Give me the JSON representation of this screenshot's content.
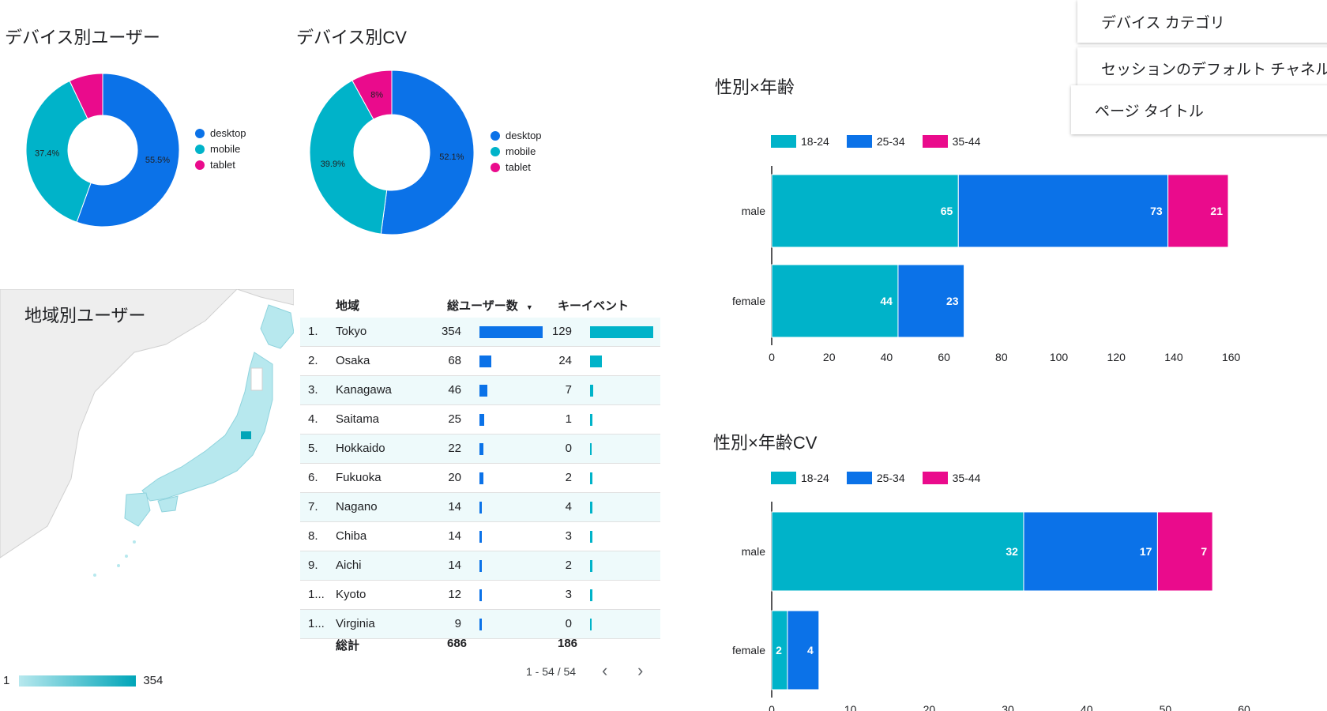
{
  "controls": {
    "device_category": "デバイス カテゴリ",
    "session_channel": "セッションのデフォルト チャネル ...",
    "page_title": "ページ タイトル"
  },
  "charts": {
    "device_users": {
      "title": "デバイス別ユーザー",
      "slices": [
        {
          "label": "desktop",
          "pct_label": "55.5%",
          "value": 55.5,
          "color": "#0b72e8"
        },
        {
          "label": "mobile",
          "pct_label": "37.4%",
          "value": 37.4,
          "color": "#00b3c9"
        },
        {
          "label": "tablet",
          "pct_label": "",
          "value": 7.1,
          "color": "#ea0b8c"
        }
      ]
    },
    "device_cv": {
      "title": "デバイス別CV",
      "slices": [
        {
          "label": "desktop",
          "pct_label": "52.1%",
          "value": 52.1,
          "color": "#0b72e8"
        },
        {
          "label": "mobile",
          "pct_label": "39.9%",
          "value": 39.9,
          "color": "#00b3c9"
        },
        {
          "label": "tablet",
          "pct_label": "8%",
          "value": 8.0,
          "color": "#ea0b8c"
        }
      ]
    },
    "gender_age": {
      "title": "性別×年齢",
      "legend": [
        "18-24",
        "25-34",
        "35-44"
      ],
      "colors": [
        "#00b3c9",
        "#0b72e8",
        "#ea0b8c"
      ],
      "categories": [
        "male",
        "female"
      ],
      "series": [
        {
          "name": "18-24",
          "values": [
            65,
            44
          ]
        },
        {
          "name": "25-34",
          "values": [
            73,
            23
          ]
        },
        {
          "name": "35-44",
          "values": [
            21,
            0
          ]
        }
      ],
      "ticks": [
        0,
        20,
        40,
        60,
        80,
        100,
        120,
        140,
        160
      ],
      "xmax": 170
    },
    "gender_age_cv": {
      "title": "性別×年齢CV",
      "legend": [
        "18-24",
        "25-34",
        "35-44"
      ],
      "colors": [
        "#00b3c9",
        "#0b72e8",
        "#ea0b8c"
      ],
      "categories": [
        "male",
        "female"
      ],
      "series": [
        {
          "name": "18-24",
          "values": [
            32,
            2
          ]
        },
        {
          "name": "25-34",
          "values": [
            17,
            4
          ]
        },
        {
          "name": "35-44",
          "values": [
            7,
            0
          ]
        }
      ],
      "ticks": [
        0,
        10,
        20,
        30,
        40,
        50,
        60
      ],
      "xmax": 62
    }
  },
  "chart_data": [
    {
      "type": "pie",
      "title": "デバイス別ユーザー",
      "categories": [
        "desktop",
        "mobile",
        "tablet"
      ],
      "values": [
        55.5,
        37.4,
        7.1
      ]
    },
    {
      "type": "pie",
      "title": "デバイス別CV",
      "categories": [
        "desktop",
        "mobile",
        "tablet"
      ],
      "values": [
        52.1,
        39.9,
        8.0
      ]
    },
    {
      "type": "bar",
      "title": "性別×年齢",
      "categories": [
        "male",
        "female"
      ],
      "series": [
        {
          "name": "18-24",
          "values": [
            65,
            44
          ]
        },
        {
          "name": "25-34",
          "values": [
            73,
            23
          ]
        },
        {
          "name": "35-44",
          "values": [
            21,
            0
          ]
        }
      ]
    },
    {
      "type": "bar",
      "title": "性別×年齢CV",
      "categories": [
        "male",
        "female"
      ],
      "series": [
        {
          "name": "18-24",
          "values": [
            32,
            2
          ]
        },
        {
          "name": "25-34",
          "values": [
            17,
            4
          ]
        },
        {
          "name": "35-44",
          "values": [
            7,
            0
          ]
        }
      ]
    }
  ],
  "map": {
    "title": "地域別ユーザー",
    "scale_min": "1",
    "scale_max": "354"
  },
  "table": {
    "headers": {
      "region": "地域",
      "users": "総ユーザー数",
      "key_events": "キーイベント"
    },
    "sort_icon": "sort-desc-icon",
    "max_users": 354,
    "max_events": 129,
    "rows": [
      {
        "rank": "1.",
        "region": "Tokyo",
        "users": 354,
        "events": 129
      },
      {
        "rank": "2.",
        "region": "Osaka",
        "users": 68,
        "events": 24
      },
      {
        "rank": "3.",
        "region": "Kanagawa",
        "users": 46,
        "events": 7
      },
      {
        "rank": "4.",
        "region": "Saitama",
        "users": 25,
        "events": 1
      },
      {
        "rank": "5.",
        "region": "Hokkaido",
        "users": 22,
        "events": 0
      },
      {
        "rank": "6.",
        "region": "Fukuoka",
        "users": 20,
        "events": 2
      },
      {
        "rank": "7.",
        "region": "Nagano",
        "users": 14,
        "events": 4
      },
      {
        "rank": "8.",
        "region": "Chiba",
        "users": 14,
        "events": 3
      },
      {
        "rank": "9.",
        "region": "Aichi",
        "users": 14,
        "events": 2
      },
      {
        "rank": "1...",
        "region": "Kyoto",
        "users": 12,
        "events": 3
      },
      {
        "rank": "1...",
        "region": "Virginia",
        "users": 9,
        "events": 0
      }
    ],
    "total_label": "総計",
    "total_users": "686",
    "total_events": "186",
    "pagination": "1 - 54 / 54"
  }
}
